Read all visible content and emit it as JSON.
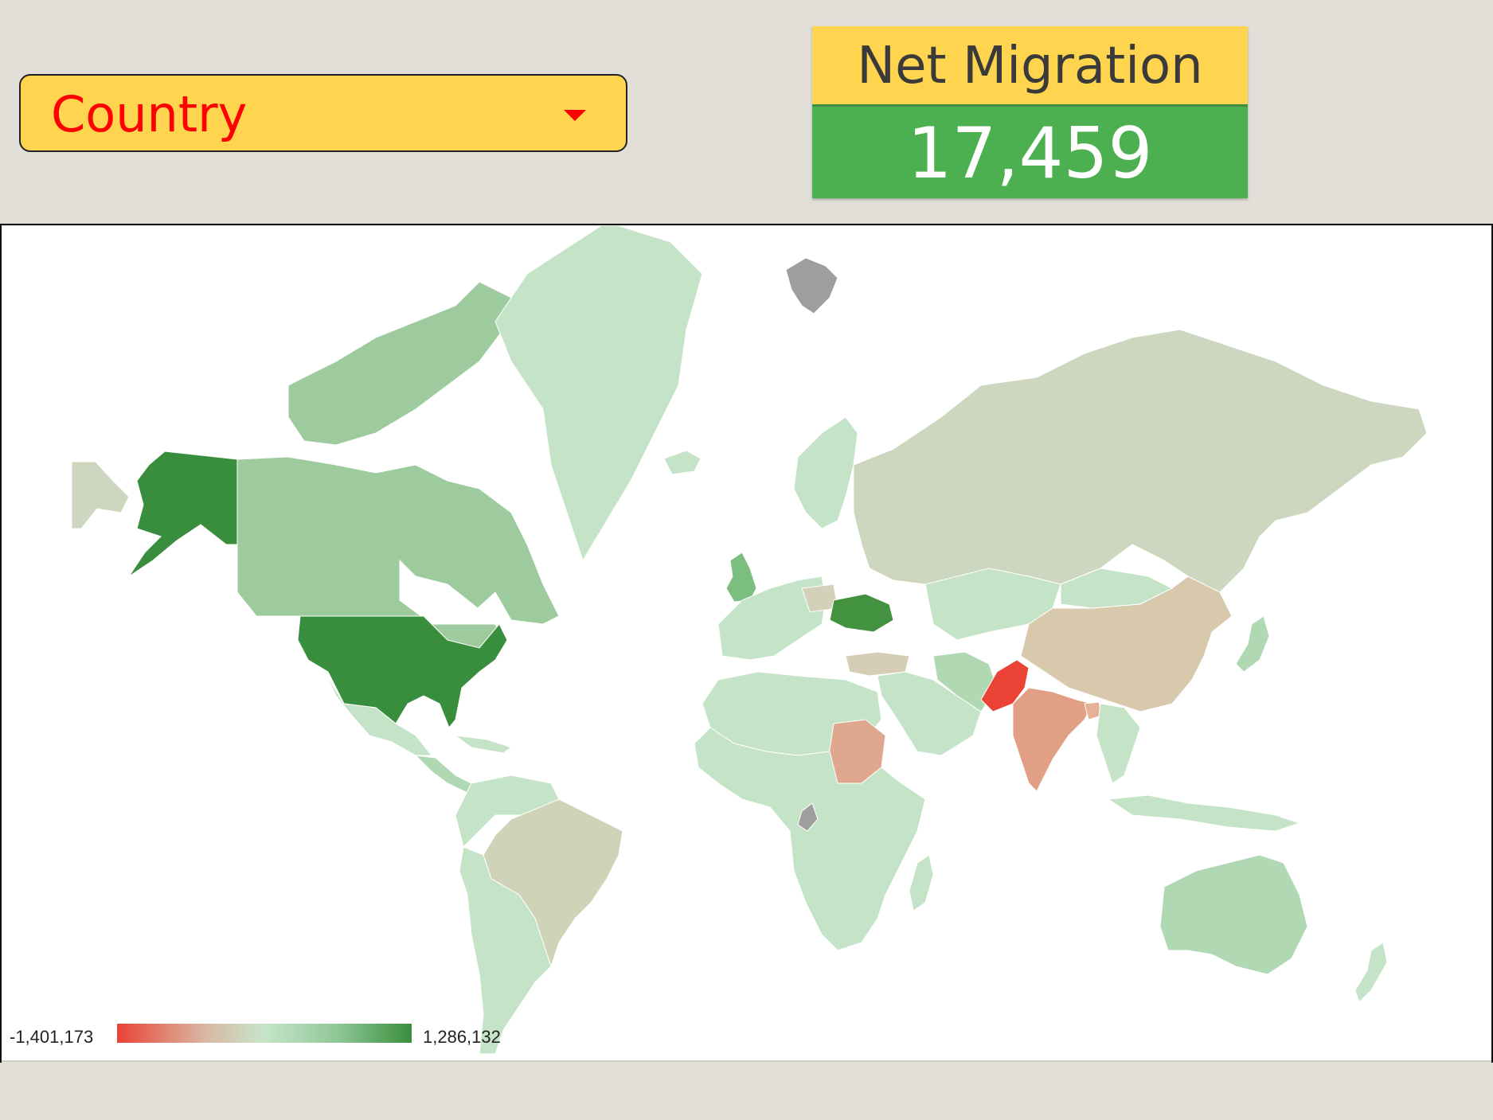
{
  "filter": {
    "label": "Country",
    "icon": "caret-down-icon",
    "colors": {
      "background": "#ffd54f",
      "text": "#ff0000"
    }
  },
  "scorecard": {
    "title": "Net Migration",
    "value": "17,459",
    "colors": {
      "title_bg": "#ffd54f",
      "value_bg": "#4caf50",
      "value_text": "#ffffff"
    }
  },
  "chart_data": {
    "type": "choropleth",
    "metric": "Net Migration",
    "color_scale": {
      "min": -1401173,
      "max": 1286132,
      "min_label": "-1,401,173",
      "max_label": "1,286,132",
      "colors": [
        "#ea4335",
        "#c6e5c9",
        "#388e3c"
      ]
    },
    "no_data_color": "#9e9e9e",
    "regions": [
      {
        "name": "United States",
        "value": 1286132,
        "color": "#388e3c"
      },
      {
        "name": "Ukraine",
        "value": 1000000,
        "color": "#43923f"
      },
      {
        "name": "Canada",
        "value": 500000,
        "color": "#9dcb9e"
      },
      {
        "name": "United Kingdom",
        "value": 400000,
        "color": "#7cbd80"
      },
      {
        "name": "Australia",
        "value": 200000,
        "color": "#b0d8b2"
      },
      {
        "name": "Greenland",
        "value": 50000,
        "color": "#c5e3c6"
      },
      {
        "name": "Russia",
        "value": -100000,
        "color": "#cdd6be"
      },
      {
        "name": "China",
        "value": -350000,
        "color": "#d8c9ad"
      },
      {
        "name": "Brazil",
        "value": -150000,
        "color": "#cfd3b8"
      },
      {
        "name": "India",
        "value": -700000,
        "color": "#e19f86"
      },
      {
        "name": "Pakistan",
        "value": -1401173,
        "color": "#ea4335"
      },
      {
        "name": "Sudan",
        "value": -600000,
        "color": "#dfa88e"
      },
      {
        "name": "Bangladesh",
        "value": -450000,
        "color": "#e5b098"
      },
      {
        "name": "Turkey",
        "value": -200000,
        "color": "#d6cdb5"
      },
      {
        "name": "Poland",
        "value": -150000,
        "color": "#d4d1bb"
      },
      {
        "name": "Svalbard",
        "value": null,
        "color": "#9e9e9e"
      }
    ]
  }
}
